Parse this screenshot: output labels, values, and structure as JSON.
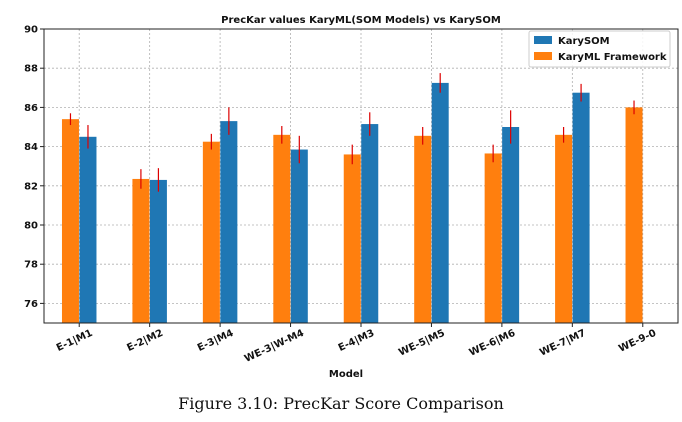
{
  "chart_data": {
    "type": "bar",
    "title": "PrecKar values KaryML(SOM Models) vs KarySOM",
    "xlabel": "Model",
    "ylabel": "",
    "ylim": [
      75,
      90
    ],
    "yticks": [
      76,
      78,
      80,
      82,
      84,
      86,
      88,
      90
    ],
    "grid": true,
    "legend_position": "top-right",
    "categories": [
      "E-1|M1",
      "E-2|M2",
      "E-3|M4",
      "WE-3|W-M4",
      "E-4|M3",
      "WE-5|M5",
      "WE-6|M6",
      "WE-7|M7",
      "WE-9-0"
    ],
    "series": [
      {
        "name": "KarySOM",
        "color": "#1f77b4",
        "values": [
          84.5,
          82.3,
          85.3,
          83.85,
          85.15,
          87.25,
          85.0,
          86.75,
          null
        ],
        "errors": [
          0.6,
          0.6,
          0.7,
          0.7,
          0.6,
          0.5,
          0.85,
          0.45,
          null
        ]
      },
      {
        "name": "KaryML Framework",
        "color": "#ff7f0e",
        "values": [
          85.4,
          82.35,
          84.25,
          84.6,
          83.6,
          84.55,
          83.65,
          84.6,
          86.0
        ],
        "errors": [
          0.3,
          0.5,
          0.4,
          0.45,
          0.5,
          0.45,
          0.45,
          0.4,
          0.35
        ]
      }
    ],
    "error_color": "#dd0000"
  },
  "caption": "Figure 3.10: PrecKar Score Comparison"
}
